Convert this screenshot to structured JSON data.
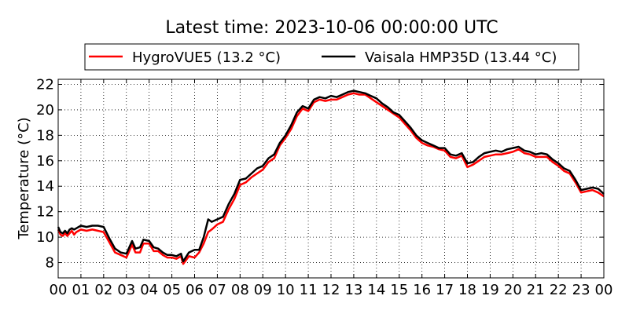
{
  "chart_data": {
    "type": "line",
    "title": "Latest time: 2023-10-06 00:00:00 UTC",
    "xlabel": "",
    "ylabel": "Temperature (°C)",
    "xlim": [
      0,
      24
    ],
    "ylim": [
      6.8,
      22.4
    ],
    "grid": true,
    "legend_position": "top-center",
    "x_tick_labels": [
      "00",
      "01",
      "02",
      "03",
      "04",
      "05",
      "06",
      "07",
      "08",
      "09",
      "10",
      "11",
      "12",
      "13",
      "14",
      "15",
      "16",
      "17",
      "18",
      "19",
      "20",
      "21",
      "22",
      "23",
      "00"
    ],
    "y_ticks": [
      8,
      10,
      12,
      14,
      16,
      18,
      20,
      22
    ],
    "x_hours": [
      0,
      0.1,
      0.2,
      0.3,
      0.4,
      0.5,
      0.6,
      0.7,
      0.8,
      0.9,
      1.0,
      1.25,
      1.5,
      1.75,
      2.0,
      2.25,
      2.5,
      2.75,
      3.0,
      3.25,
      3.4,
      3.6,
      3.75,
      4.0,
      4.2,
      4.4,
      4.6,
      4.8,
      5.0,
      5.2,
      5.4,
      5.5,
      5.75,
      6.0,
      6.2,
      6.4,
      6.6,
      6.75,
      7.0,
      7.25,
      7.5,
      7.75,
      8.0,
      8.25,
      8.5,
      8.75,
      9.0,
      9.25,
      9.5,
      9.75,
      10.0,
      10.25,
      10.5,
      10.75,
      11.0,
      11.25,
      11.5,
      11.75,
      12.0,
      12.25,
      12.5,
      12.75,
      13.0,
      13.25,
      13.5,
      13.75,
      14.0,
      14.25,
      14.5,
      14.75,
      15.0,
      15.25,
      15.5,
      15.75,
      16.0,
      16.25,
      16.5,
      16.75,
      17.0,
      17.25,
      17.5,
      17.75,
      18.0,
      18.25,
      18.5,
      18.75,
      19.0,
      19.25,
      19.5,
      19.75,
      20.0,
      20.25,
      20.5,
      20.75,
      21.0,
      21.25,
      21.5,
      21.75,
      22.0,
      22.25,
      22.5,
      22.75,
      23.0,
      23.25,
      23.5,
      23.75,
      24.0
    ],
    "series": [
      {
        "name": "HygroVUE5 (13.2 °C)",
        "color": "#ff0000",
        "values": [
          10.6,
          10.2,
          10.1,
          10.3,
          10.1,
          10.3,
          10.5,
          10.2,
          10.4,
          10.5,
          10.6,
          10.5,
          10.6,
          10.5,
          10.4,
          9.6,
          8.8,
          8.6,
          8.4,
          9.4,
          8.8,
          8.8,
          9.5,
          9.5,
          8.9,
          8.9,
          8.6,
          8.4,
          8.4,
          8.3,
          8.5,
          7.9,
          8.5,
          8.4,
          8.8,
          9.5,
          10.4,
          10.6,
          11.0,
          11.2,
          12.2,
          13.0,
          14.1,
          14.3,
          14.7,
          15.0,
          15.3,
          15.9,
          16.2,
          17.2,
          17.8,
          18.5,
          19.5,
          20.1,
          19.9,
          20.6,
          20.8,
          20.7,
          20.8,
          20.8,
          21.0,
          21.2,
          21.3,
          21.2,
          21.2,
          20.9,
          20.6,
          20.3,
          20.0,
          19.7,
          19.4,
          18.9,
          18.4,
          17.8,
          17.4,
          17.2,
          17.1,
          16.9,
          16.8,
          16.3,
          16.2,
          16.4,
          15.5,
          15.7,
          16.0,
          16.3,
          16.4,
          16.5,
          16.5,
          16.6,
          16.7,
          16.9,
          16.6,
          16.5,
          16.3,
          16.3,
          16.3,
          15.9,
          15.6,
          15.2,
          15.0,
          14.3,
          13.5,
          13.6,
          13.7,
          13.5,
          13.2
        ]
      },
      {
        "name": "Vaisala HMP35D (13.44 °C)",
        "color": "#000000",
        "values": [
          10.8,
          10.4,
          10.3,
          10.5,
          10.3,
          10.6,
          10.7,
          10.6,
          10.7,
          10.8,
          10.9,
          10.8,
          10.9,
          10.9,
          10.8,
          9.9,
          9.1,
          8.8,
          8.7,
          9.7,
          9.1,
          9.2,
          9.8,
          9.7,
          9.2,
          9.1,
          8.8,
          8.6,
          8.6,
          8.5,
          8.7,
          8.1,
          8.8,
          9.0,
          9.0,
          10.0,
          11.4,
          11.2,
          11.4,
          11.6,
          12.6,
          13.4,
          14.5,
          14.6,
          15.0,
          15.4,
          15.6,
          16.2,
          16.5,
          17.4,
          18.0,
          18.8,
          19.8,
          20.3,
          20.1,
          20.8,
          21.0,
          20.9,
          21.1,
          21.0,
          21.2,
          21.4,
          21.5,
          21.4,
          21.3,
          21.1,
          20.9,
          20.5,
          20.2,
          19.8,
          19.6,
          19.1,
          18.6,
          18.0,
          17.6,
          17.4,
          17.2,
          17.0,
          17.0,
          16.5,
          16.4,
          16.6,
          15.8,
          15.9,
          16.3,
          16.6,
          16.7,
          16.8,
          16.7,
          16.9,
          17.0,
          17.1,
          16.8,
          16.7,
          16.5,
          16.6,
          16.5,
          16.1,
          15.8,
          15.4,
          15.2,
          14.5,
          13.7,
          13.8,
          13.9,
          13.8,
          13.4
        ]
      }
    ]
  }
}
